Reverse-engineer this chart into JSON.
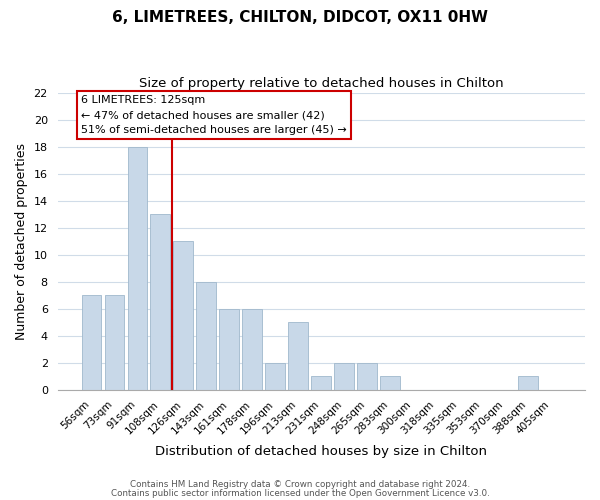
{
  "title": "6, LIMETREES, CHILTON, DIDCOT, OX11 0HW",
  "subtitle": "Size of property relative to detached houses in Chilton",
  "xlabel": "Distribution of detached houses by size in Chilton",
  "ylabel": "Number of detached properties",
  "bar_color": "#c8d8e8",
  "bar_edgecolor": "#a0b8cc",
  "categories": [
    "56sqm",
    "73sqm",
    "91sqm",
    "108sqm",
    "126sqm",
    "143sqm",
    "161sqm",
    "178sqm",
    "196sqm",
    "213sqm",
    "231sqm",
    "248sqm",
    "265sqm",
    "283sqm",
    "300sqm",
    "318sqm",
    "335sqm",
    "353sqm",
    "370sqm",
    "388sqm",
    "405sqm"
  ],
  "values": [
    7,
    7,
    18,
    13,
    11,
    8,
    6,
    6,
    2,
    5,
    1,
    2,
    2,
    1,
    0,
    0,
    0,
    0,
    0,
    1,
    0
  ],
  "ylim": [
    0,
    22
  ],
  "yticks": [
    0,
    2,
    4,
    6,
    8,
    10,
    12,
    14,
    16,
    18,
    20,
    22
  ],
  "vline_color": "#cc0000",
  "vline_bar_index": 4,
  "annotation_title": "6 LIMETREES: 125sqm",
  "annotation_line1": "← 47% of detached houses are smaller (42)",
  "annotation_line2": "51% of semi-detached houses are larger (45) →",
  "annotation_box_color": "#ffffff",
  "annotation_box_edgecolor": "#cc0000",
  "footer1": "Contains HM Land Registry data © Crown copyright and database right 2024.",
  "footer2": "Contains public sector information licensed under the Open Government Licence v3.0.",
  "background_color": "#ffffff",
  "grid_color": "#d0dce8"
}
